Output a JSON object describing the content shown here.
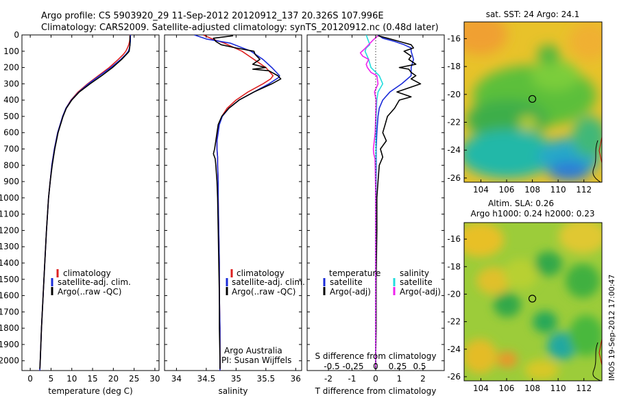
{
  "header": {
    "line1": "Argo profile: CS 5903920_29 11-Sep-2012 20120912_137 20.326S 107.996E",
    "line2": "Climatology: CARS2009. Satellite-adjusted climatology: synTS_20120912.nc (0.48d later)"
  },
  "side_stamp": "IMOS 19-Sep-2012 17:00:47",
  "colors": {
    "climatology": "#dd2020",
    "satellite": "#1a2bd8",
    "argo": "#000000",
    "satellite_s": "#22dddd",
    "argo_s": "#ee22ee"
  },
  "depth_ticks": [
    0,
    100,
    200,
    300,
    400,
    500,
    600,
    700,
    800,
    900,
    1000,
    1100,
    1200,
    1300,
    1400,
    1500,
    1600,
    1700,
    1800,
    1900,
    2000
  ],
  "chart_data": [
    {
      "type": "line",
      "id": "temperature",
      "xlabel": "temperature (deg C)",
      "xlim": [
        -2,
        31
      ],
      "ylim": [
        0,
        2060
      ],
      "xticks": [
        0,
        5,
        10,
        15,
        20,
        25,
        30
      ],
      "legend": [
        "climatology",
        "satellite-adj. clim.",
        "Argo(..raw -QC)"
      ],
      "series": [
        {
          "name": "climatology",
          "y": [
            0,
            20,
            40,
            60,
            80,
            100,
            120,
            150,
            200,
            250,
            300,
            350,
            400,
            450,
            500,
            600,
            700,
            800,
            900,
            1000,
            1200,
            1400,
            1600,
            1800,
            2000,
            2060
          ],
          "x": [
            24.0,
            24.0,
            23.9,
            23.7,
            23.4,
            23.0,
            22.4,
            21.2,
            19.0,
            16.4,
            13.8,
            11.5,
            9.8,
            8.6,
            7.8,
            6.6,
            5.8,
            5.2,
            4.8,
            4.4,
            3.9,
            3.5,
            3.1,
            2.7,
            2.4,
            2.3
          ]
        },
        {
          "name": "satellite-adj. clim.",
          "y": [
            0,
            20,
            40,
            60,
            80,
            100,
            120,
            150,
            200,
            250,
            300,
            350,
            400,
            450,
            500,
            600,
            700,
            800,
            900,
            1000,
            1200,
            1400,
            1600,
            1800,
            2000,
            2060
          ],
          "x": [
            24.1,
            24.1,
            24.1,
            24.0,
            23.9,
            23.6,
            23.0,
            21.8,
            19.4,
            16.7,
            14.0,
            11.7,
            9.9,
            8.6,
            7.8,
            6.6,
            5.8,
            5.2,
            4.8,
            4.4,
            3.9,
            3.5,
            3.1,
            2.7,
            2.4,
            2.3
          ]
        },
        {
          "name": "Argo(..raw -QC)",
          "y": [
            5,
            20,
            40,
            60,
            80,
            100,
            110,
            150,
            200,
            250,
            300,
            350,
            400,
            450,
            500,
            600,
            700,
            800,
            900,
            1000,
            1200,
            1400,
            1600,
            1800,
            2000,
            2050
          ],
          "x": [
            24.0,
            24.0,
            24.0,
            24.0,
            23.9,
            23.8,
            23.5,
            22.0,
            19.8,
            17.2,
            14.4,
            11.8,
            10.0,
            8.7,
            7.9,
            6.7,
            5.9,
            5.3,
            4.8,
            4.4,
            3.9,
            3.5,
            3.1,
            2.7,
            2.4,
            2.3
          ]
        }
      ]
    },
    {
      "type": "line",
      "id": "salinity",
      "xlabel": "salinity",
      "xlim": [
        33.8,
        36.1
      ],
      "ylim": [
        0,
        2060
      ],
      "xticks": [
        34,
        34.5,
        35,
        35.5,
        36
      ],
      "legend": [
        "climatology",
        "satellite-adj. clim.",
        "Argo(..raw -QC)"
      ],
      "annotation": [
        "Argo Australia",
        "PI: Susan Wijffels"
      ],
      "series": [
        {
          "name": "climatology",
          "y": [
            0,
            25,
            50,
            100,
            150,
            200,
            250,
            270,
            300,
            350,
            400,
            450,
            500,
            550,
            600,
            650,
            700,
            750,
            800,
            900,
            1000,
            1200,
            1400,
            1600,
            1800,
            2000,
            2060
          ],
          "x": [
            34.45,
            34.6,
            34.8,
            35.1,
            35.3,
            35.5,
            35.62,
            35.58,
            35.45,
            35.2,
            35.0,
            34.85,
            34.76,
            34.71,
            34.69,
            34.68,
            34.68,
            34.69,
            34.69,
            34.7,
            34.7,
            34.71,
            34.72,
            34.72,
            34.73,
            34.73,
            34.73
          ]
        },
        {
          "name": "satellite-adj. clim.",
          "y": [
            0,
            25,
            50,
            100,
            150,
            200,
            250,
            260,
            300,
            350,
            400,
            450,
            500,
            550,
            600,
            650,
            700,
            750,
            800,
            900,
            1000,
            1200,
            1400,
            1600,
            1800,
            2000,
            2060
          ],
          "x": [
            34.3,
            34.5,
            34.9,
            35.25,
            35.45,
            35.6,
            35.73,
            35.72,
            35.55,
            35.3,
            35.05,
            34.88,
            34.77,
            34.72,
            34.7,
            34.68,
            34.68,
            34.69,
            34.69,
            34.7,
            34.7,
            34.71,
            34.72,
            34.72,
            34.73,
            34.73,
            34.73
          ]
        },
        {
          "name": "Argo(..raw -QC)",
          "y": [
            5,
            20,
            40,
            60,
            80,
            100,
            120,
            150,
            180,
            200,
            210,
            220,
            230,
            250,
            270,
            300,
            350,
            400,
            450,
            500,
            550,
            600,
            650,
            700,
            730,
            760,
            800,
            900,
            1000,
            1200,
            1400,
            1600,
            1800,
            2000,
            2050
          ],
          "x": [
            34.95,
            34.62,
            34.66,
            34.75,
            35.0,
            35.3,
            35.32,
            35.4,
            35.28,
            35.5,
            35.28,
            35.55,
            35.6,
            35.7,
            35.75,
            35.6,
            35.3,
            35.05,
            34.88,
            34.76,
            34.7,
            34.68,
            34.66,
            34.64,
            34.62,
            34.65,
            34.66,
            34.68,
            34.69,
            34.7,
            34.71,
            34.72,
            34.72,
            34.73,
            34.73
          ]
        }
      ]
    },
    {
      "type": "line",
      "id": "differences",
      "xlabel_top": "S difference from climatology",
      "xlabel": "T difference from climatology",
      "xlim": [
        -2.9,
        2.9
      ],
      "ylim": [
        0,
        2060
      ],
      "xticks": [
        -2,
        -1,
        0,
        1,
        2
      ],
      "s_ticks": [
        "-0.5",
        "-0.25",
        "0",
        "0.25",
        "0.5"
      ],
      "legend_titles": [
        "temperature",
        "salinity"
      ],
      "legend": [
        "satellite",
        "Argo(-adj)",
        "satellite",
        "Argo(-adj)"
      ],
      "series": [
        {
          "name": "satellite (temperature)",
          "y": [
            0,
            20,
            40,
            60,
            80,
            100,
            150,
            200,
            250,
            300,
            350,
            400,
            450,
            500,
            600,
            700,
            800,
            1000,
            1500,
            2000,
            2050
          ],
          "x": [
            0.1,
            0.3,
            0.8,
            1.2,
            1.5,
            1.5,
            1.6,
            1.5,
            1.5,
            1.1,
            0.6,
            0.3,
            0.15,
            0.1,
            0.05,
            0.02,
            0.02,
            0.01,
            0,
            0,
            0
          ]
        },
        {
          "name": "Argo(-adj) (temperature)",
          "y": [
            5,
            20,
            40,
            60,
            80,
            100,
            130,
            150,
            180,
            200,
            210,
            230,
            250,
            270,
            300,
            330,
            350,
            380,
            400,
            450,
            500,
            550,
            600,
            650,
            700,
            750,
            800,
            900,
            1000,
            1200,
            1500,
            1800,
            2000,
            2050
          ],
          "x": [
            0.1,
            0.5,
            1.0,
            1.5,
            1.6,
            1.2,
            1.5,
            1.4,
            1.7,
            1.0,
            1.4,
            1.5,
            1.7,
            1.5,
            1.9,
            1.3,
            0.9,
            1.5,
            1.0,
            0.8,
            0.5,
            0.4,
            0.3,
            0.45,
            0.2,
            0.3,
            0.15,
            0.1,
            0.05,
            0.05,
            0.02,
            0.02,
            0,
            0
          ]
        },
        {
          "name": "satellite (salinity)",
          "y": [
            0,
            20,
            40,
            60,
            80,
            100,
            150,
            200,
            250,
            300,
            350,
            400,
            500,
            600,
            700,
            800,
            1000,
            1500,
            2000,
            2050
          ],
          "x": [
            -0.4,
            -0.35,
            -0.3,
            -0.25,
            -0.4,
            -0.45,
            -0.3,
            -0.2,
            0.15,
            0.3,
            0.1,
            0.05,
            0.02,
            0.01,
            0.01,
            0.0,
            0.0,
            0.0,
            0.0,
            0.0
          ]
        },
        {
          "name": "Argo(-adj) (salinity)",
          "y": [
            5,
            30,
            60,
            90,
            110,
            130,
            150,
            180,
            200,
            230,
            250,
            300,
            350,
            400,
            500,
            600,
            650,
            700,
            730,
            760,
            800,
            900,
            1000,
            1500,
            2000,
            2050
          ],
          "x": [
            0.1,
            -0.1,
            -0.3,
            -0.5,
            -0.65,
            -0.55,
            -0.3,
            -0.4,
            -0.35,
            -0.2,
            0.05,
            0.1,
            -0.05,
            0.02,
            0.0,
            -0.02,
            -0.06,
            -0.1,
            -0.08,
            -0.03,
            -0.02,
            -0.01,
            0.0,
            0.0,
            0.0,
            0.0
          ]
        }
      ]
    },
    {
      "type": "heatmap",
      "id": "sst_map",
      "title": "sat. SST: 24 Argo: 24.1",
      "xticks": [
        104,
        106,
        108,
        110,
        112
      ],
      "yticks": [
        -16,
        -18,
        -20,
        -22,
        -24,
        -26
      ],
      "xlim": [
        102.7,
        113.4
      ],
      "ylim": [
        -26.3,
        -14.8
      ],
      "marker": {
        "lon": 107.996,
        "lat": -20.326
      }
    },
    {
      "type": "heatmap",
      "id": "sla_map",
      "title": "Altim. SLA: 0.26",
      "subtitle": "Argo h1000: 0.24 h2000: 0.23",
      "xticks": [
        104,
        106,
        108,
        110,
        112
      ],
      "yticks": [
        -16,
        -18,
        -20,
        -22,
        -24,
        -26
      ],
      "xlim": [
        102.7,
        113.4
      ],
      "ylim": [
        -26.3,
        -14.8
      ],
      "marker": {
        "lon": 107.996,
        "lat": -20.326
      }
    }
  ]
}
